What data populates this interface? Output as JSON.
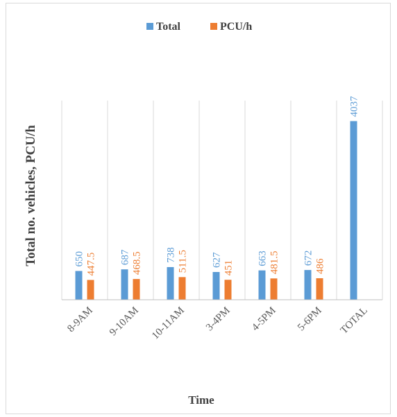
{
  "chart_data": {
    "type": "bar",
    "categories": [
      "8-9AM",
      "9-10AM",
      "10-11AM",
      "3-4PM",
      "4-5PM",
      "5-6PM",
      "TOTAL"
    ],
    "series": [
      {
        "name": "Total",
        "color": "#5b9bd5",
        "values": [
          650,
          687,
          738,
          627,
          663,
          672,
          4037
        ]
      },
      {
        "name": "PCU/h",
        "color": "#ed7d31",
        "values": [
          447.5,
          468.5,
          511.5,
          451,
          481.5,
          486,
          null
        ]
      }
    ],
    "data_labels": [
      [
        "650",
        "687",
        "738",
        "627",
        "663",
        "672",
        "4037"
      ],
      [
        "447.5",
        "468.5",
        "511.5",
        "451",
        "481.5",
        "486",
        ""
      ]
    ],
    "title": "",
    "xlabel": "Time",
    "ylabel": "Total no. vehicles, PCU/h",
    "ylim": [
      0,
      4500
    ],
    "grid": "vertical",
    "legend": "top"
  }
}
